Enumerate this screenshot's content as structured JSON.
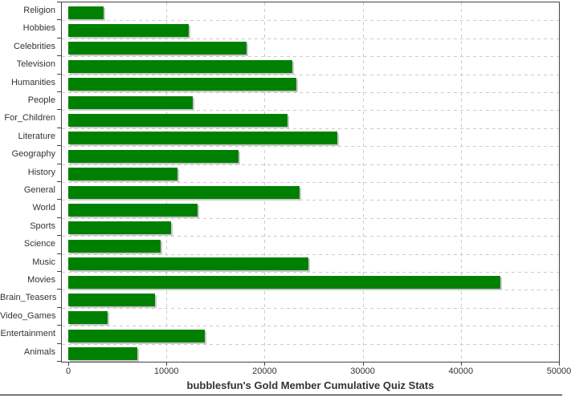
{
  "chart_data": {
    "type": "bar",
    "orientation": "horizontal",
    "title": "bubblesfun's Gold Member Cumulative Quiz Stats",
    "categories": [
      "Religion",
      "Hobbies",
      "Celebrities",
      "Television",
      "Humanities",
      "People",
      "For_Children",
      "Literature",
      "Geography",
      "History",
      "General",
      "World",
      "Sports",
      "Science",
      "Music",
      "Movies",
      "Brain_Teasers",
      "Video_Games",
      "Entertainment",
      "Animals"
    ],
    "values": [
      3600,
      12250,
      18200,
      22850,
      23200,
      12650,
      22300,
      27400,
      17350,
      11150,
      23600,
      13150,
      10500,
      9450,
      24450,
      44050,
      8800,
      4050,
      13950,
      7050
    ],
    "xlabel": "",
    "ylabel": "",
    "xlim": [
      0,
      50000
    ],
    "x_ticks": [
      0,
      10000,
      20000,
      30000,
      40000,
      50000
    ],
    "x_tick_labels": [
      "0",
      "10000",
      "20000",
      "30000",
      "40000",
      "50000"
    ],
    "grid": true,
    "legend": false,
    "colors": {
      "bar": "#008000",
      "bar_shadow": "#c9c9c9",
      "grid": "#cccccc",
      "plot_border": "#444444",
      "text": "#333333",
      "bottom_rule": "#000000"
    }
  }
}
